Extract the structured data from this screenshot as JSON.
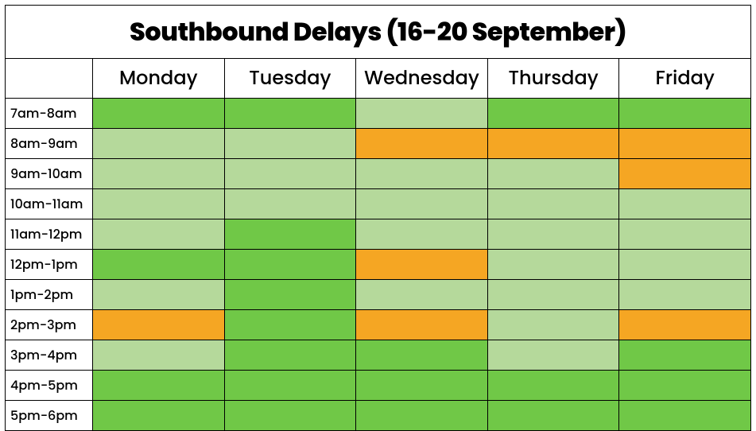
{
  "title": "Southbound Delays (16-20 September)",
  "days": [
    "Monday",
    "Tuesday",
    "Wednesday",
    "Thursday",
    "Friday"
  ],
  "times": [
    "7am-8am",
    "8am-9am",
    "9am-10am",
    "10am-11am",
    "11am-12pm",
    "12pm-1pm",
    "1pm-2pm",
    "2pm-3pm",
    "3pm-4pm",
    "4pm-5pm",
    "5pm-6pm"
  ],
  "palette": {
    "bright_green": "#70c847",
    "light_green": "#b5d99b",
    "orange": "#f5a623",
    "white": "#ffffff",
    "border": "#000000",
    "title_font_size": 32,
    "day_font_size": 24,
    "time_font_size": 16,
    "font_family": "Poppins, Segoe UI, Arial, sans-serif"
  },
  "grid": {
    "type": "heatmap-categorical",
    "levels": [
      "bright_green",
      "light_green",
      "orange"
    ],
    "cells": [
      [
        "bright_green",
        "bright_green",
        "light_green",
        "bright_green",
        "bright_green"
      ],
      [
        "light_green",
        "light_green",
        "orange",
        "orange",
        "orange"
      ],
      [
        "light_green",
        "light_green",
        "light_green",
        "light_green",
        "orange"
      ],
      [
        "light_green",
        "light_green",
        "light_green",
        "light_green",
        "light_green"
      ],
      [
        "light_green",
        "bright_green",
        "light_green",
        "light_green",
        "light_green"
      ],
      [
        "bright_green",
        "bright_green",
        "orange",
        "light_green",
        "light_green"
      ],
      [
        "light_green",
        "bright_green",
        "light_green",
        "light_green",
        "light_green"
      ],
      [
        "orange",
        "bright_green",
        "orange",
        "light_green",
        "orange"
      ],
      [
        "light_green",
        "bright_green",
        "bright_green",
        "light_green",
        "bright_green"
      ],
      [
        "bright_green",
        "bright_green",
        "bright_green",
        "bright_green",
        "bright_green"
      ],
      [
        "bright_green",
        "bright_green",
        "bright_green",
        "bright_green",
        "bright_green"
      ]
    ]
  }
}
